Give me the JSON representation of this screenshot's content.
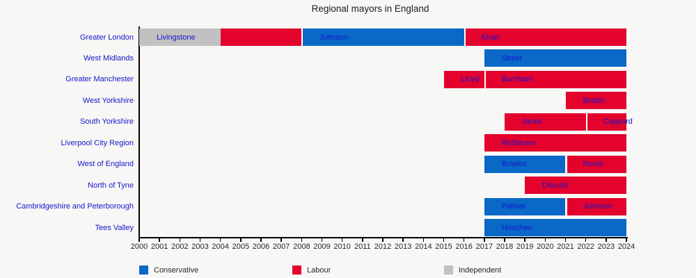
{
  "chart_data": {
    "type": "bar",
    "orientation": "horizontal-timeline",
    "title": "Regional mayors in England",
    "x_axis": {
      "min": 2000,
      "max": 2024,
      "tick_labels": [
        "2000",
        "2001",
        "2002",
        "2003",
        "2004",
        "2005",
        "2006",
        "2007",
        "2008",
        "2009",
        "2010",
        "2011",
        "2012",
        "2013",
        "2014",
        "2015",
        "2016",
        "2017",
        "2018",
        "2019",
        "2020",
        "2021",
        "2022",
        "2023",
        "2024"
      ]
    },
    "party_colors": {
      "Conservative": "#0A69C7",
      "Labour": "#E3032C",
      "Independent": "#C1C1C1"
    },
    "legend": [
      {
        "label": "Conservative",
        "color": "#0A69C7"
      },
      {
        "label": "Labour",
        "color": "#E3032C"
      },
      {
        "label": "Independent",
        "color": "#C1C1C1"
      }
    ],
    "rows": [
      {
        "region": "Greater London",
        "segments": [
          {
            "name": "Livingstone",
            "party": "Independent",
            "start": 2000,
            "end": 2004,
            "separator": false
          },
          {
            "name": "",
            "party": "Labour",
            "start": 2004,
            "end": 2008,
            "separator": false
          },
          {
            "name": "Johnson",
            "party": "Conservative",
            "start": 2008,
            "end": 2016,
            "separator": true
          },
          {
            "name": "Khan",
            "party": "Labour",
            "start": 2016,
            "end": 2024,
            "separator": true
          }
        ]
      },
      {
        "region": "West Midlands",
        "segments": [
          {
            "name": "Street",
            "party": "Conservative",
            "start": 2017,
            "end": 2024,
            "separator": false
          }
        ]
      },
      {
        "region": "Greater Manchester",
        "segments": [
          {
            "name": "Lloyd",
            "party": "Labour",
            "start": 2015,
            "end": 2017,
            "separator": false
          },
          {
            "name": "Burnham",
            "party": "Labour",
            "start": 2017,
            "end": 2024,
            "separator": true
          }
        ]
      },
      {
        "region": "West Yorkshire",
        "segments": [
          {
            "name": "Brabin",
            "party": "Labour",
            "start": 2021,
            "end": 2024,
            "separator": false
          }
        ]
      },
      {
        "region": "South Yorkshire",
        "segments": [
          {
            "name": "Jarvis",
            "party": "Labour",
            "start": 2018,
            "end": 2022,
            "separator": false
          },
          {
            "name": "Coppard",
            "party": "Labour",
            "start": 2022,
            "end": 2024,
            "separator": true
          }
        ]
      },
      {
        "region": "Liverpool City Region",
        "segments": [
          {
            "name": "Rotheram",
            "party": "Labour",
            "start": 2017,
            "end": 2024,
            "separator": false
          }
        ]
      },
      {
        "region": "West of England",
        "segments": [
          {
            "name": "Bowles",
            "party": "Conservative",
            "start": 2017,
            "end": 2021,
            "separator": false
          },
          {
            "name": "Norris",
            "party": "Labour",
            "start": 2021,
            "end": 2024,
            "separator": true
          }
        ]
      },
      {
        "region": "North of Tyne",
        "segments": [
          {
            "name": "Driscoll",
            "party": "Labour",
            "start": 2019,
            "end": 2024,
            "separator": false
          }
        ]
      },
      {
        "region": "Cambridgeshire and Peterborough",
        "segments": [
          {
            "name": "Palmer",
            "party": "Conservative",
            "start": 2017,
            "end": 2021,
            "separator": false
          },
          {
            "name": "Johnson",
            "party": "Labour",
            "start": 2021,
            "end": 2024,
            "separator": true
          }
        ]
      },
      {
        "region": "Tees Valley",
        "segments": [
          {
            "name": "Houchen",
            "party": "Conservative",
            "start": 2017,
            "end": 2024,
            "separator": false
          }
        ]
      }
    ]
  }
}
